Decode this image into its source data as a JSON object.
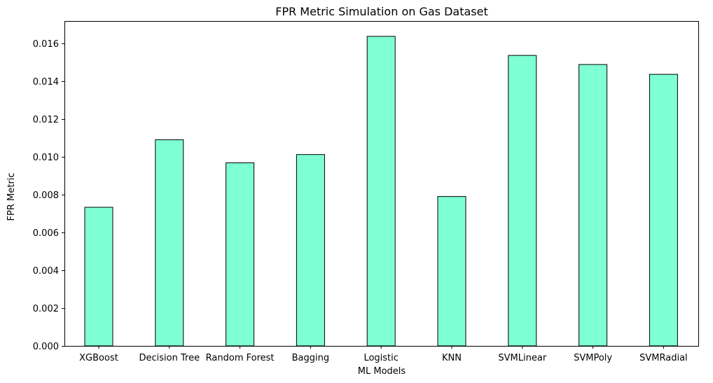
{
  "chart_data": {
    "type": "bar",
    "title": "FPR Metric Simulation on Gas Dataset",
    "xlabel": "ML Models",
    "ylabel": "FPR Metric",
    "categories": [
      "XGBoost",
      "Decision Tree",
      "Random Forest",
      "Bagging",
      "Logistic",
      "KNN",
      "SVMLinear",
      "SVMPoly",
      "SVMRadial"
    ],
    "values": [
      0.00733,
      0.0109,
      0.00968,
      0.01012,
      0.01637,
      0.0079,
      0.01536,
      0.01488,
      0.01436
    ],
    "ylim": [
      0,
      0.01718
    ],
    "yticks": [
      0.0,
      0.002,
      0.004,
      0.006,
      0.008,
      0.01,
      0.012,
      0.014,
      0.016
    ],
    "ytick_labels": [
      "0.000",
      "0.002",
      "0.004",
      "0.006",
      "0.008",
      "0.010",
      "0.012",
      "0.014",
      "0.016"
    ],
    "grid": false,
    "bar_color": "#7fffd4",
    "edge_color": "#000000"
  }
}
